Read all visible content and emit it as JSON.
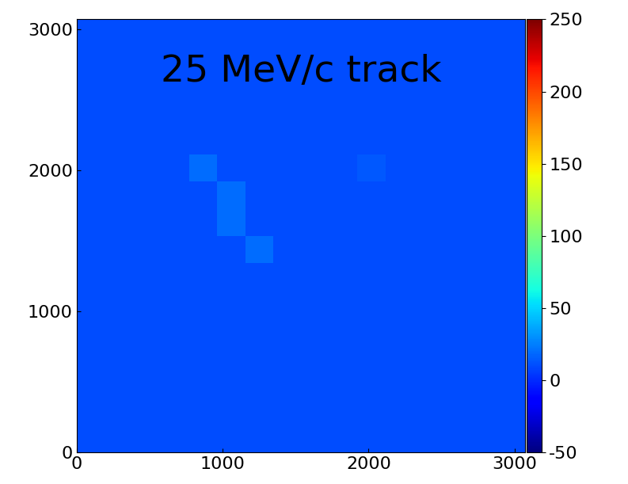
{
  "chart_data": {
    "type": "heatmap",
    "annotation": "25 MeV/c track",
    "xlim": [
      0,
      3072
    ],
    "ylim": [
      0,
      3072
    ],
    "xticks": [
      0,
      1000,
      2000,
      3000
    ],
    "yticks": [
      0,
      1000,
      2000,
      3000
    ],
    "cells": [
      [
        10,
        10,
        10,
        10,
        10,
        10,
        10,
        10,
        10,
        10,
        10,
        10,
        10,
        10,
        10,
        10
      ],
      [
        10,
        10,
        10,
        10,
        10,
        10,
        10,
        10,
        10,
        10,
        10,
        10,
        10,
        10,
        10,
        10
      ],
      [
        10,
        10,
        10,
        10,
        10,
        10,
        10,
        10,
        10,
        10,
        10,
        10,
        10,
        10,
        10,
        10
      ],
      [
        10,
        10,
        10,
        10,
        10,
        10,
        10,
        10,
        10,
        10,
        10,
        10,
        10,
        10,
        10,
        10
      ],
      [
        10,
        10,
        10,
        10,
        10,
        10,
        10,
        10,
        10,
        10,
        10,
        10,
        10,
        10,
        10,
        10
      ],
      [
        10,
        10,
        10,
        10,
        10,
        10,
        10,
        10,
        10,
        10,
        10,
        10,
        10,
        10,
        10,
        10
      ],
      [
        10,
        10,
        10,
        10,
        10,
        10,
        10,
        10,
        10,
        10,
        10,
        10,
        10,
        10,
        10,
        10
      ],
      [
        10,
        10,
        10,
        10,
        10,
        10,
        20,
        10,
        10,
        10,
        10,
        10,
        10,
        10,
        10,
        10
      ],
      [
        10,
        10,
        10,
        10,
        10,
        20,
        10,
        10,
        10,
        10,
        10,
        10,
        10,
        10,
        10,
        10
      ],
      [
        10,
        10,
        10,
        10,
        10,
        20,
        10,
        10,
        10,
        10,
        10,
        10,
        10,
        10,
        10,
        10
      ],
      [
        10,
        10,
        10,
        10,
        20,
        10,
        10,
        10,
        10,
        10,
        14,
        10,
        10,
        10,
        10,
        10
      ],
      [
        10,
        10,
        10,
        10,
        10,
        10,
        10,
        10,
        10,
        10,
        10,
        10,
        10,
        10,
        10,
        10
      ],
      [
        10,
        10,
        10,
        10,
        10,
        10,
        10,
        10,
        10,
        10,
        10,
        10,
        10,
        10,
        10,
        10
      ],
      [
        10,
        10,
        10,
        10,
        10,
        10,
        10,
        10,
        10,
        10,
        10,
        10,
        10,
        10,
        10,
        10
      ],
      [
        10,
        10,
        10,
        10,
        10,
        10,
        10,
        10,
        10,
        10,
        10,
        10,
        10,
        10,
        10,
        10
      ],
      [
        10,
        10,
        10,
        10,
        10,
        10,
        10,
        10,
        10,
        10,
        10,
        10,
        10,
        10,
        10,
        10
      ]
    ],
    "colorbar": {
      "range": [
        -50,
        250
      ],
      "ticks": [
        -50,
        0,
        50,
        100,
        150,
        200,
        250
      ]
    }
  }
}
